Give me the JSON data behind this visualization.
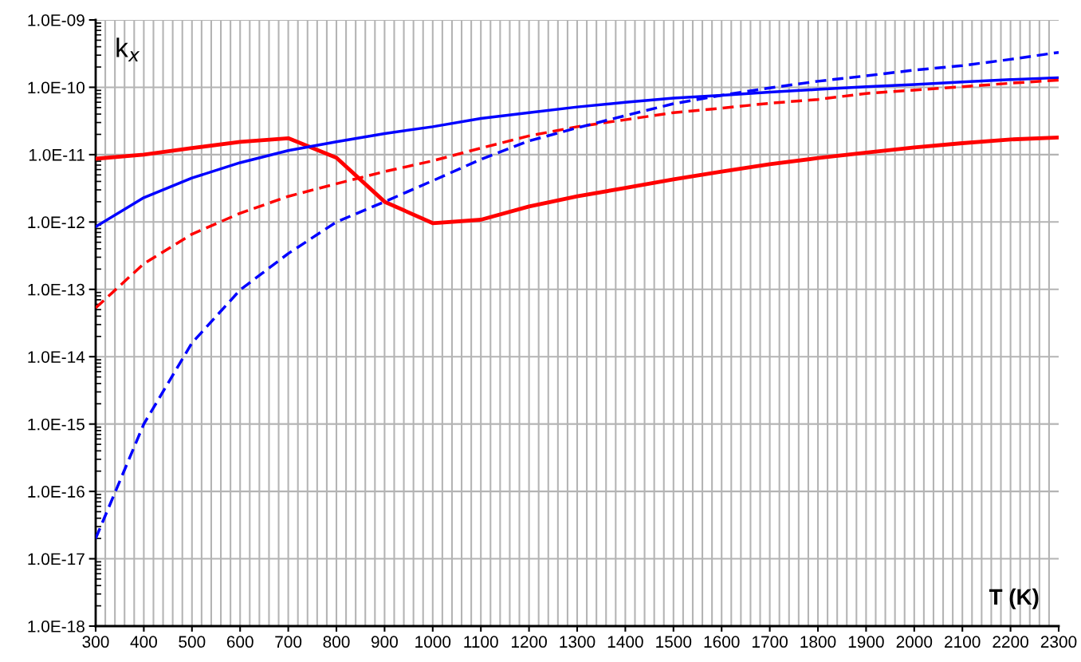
{
  "chart_data": {
    "type": "line",
    "xlabel": "T (K)",
    "ylabel": "k$_{x}$",
    "log": "y",
    "grid": true,
    "x": [
      300,
      400,
      500,
      600,
      700,
      800,
      900,
      1000,
      1100,
      1200,
      1300,
      1400,
      1500,
      1600,
      1700,
      1800,
      1900,
      2000,
      2100,
      2200,
      2300
    ],
    "series": [
      {
        "color": "#ff0000",
        "line_style": "solid",
        "values": [
          8.7e-12,
          1e-11,
          1.25e-11,
          1.55e-11,
          1.75e-11,
          9e-12,
          2e-12,
          9.6e-13,
          1.08e-12,
          1.7e-12,
          2.4e-12,
          3.2e-12,
          4.3e-12,
          5.6e-12,
          7.2e-12,
          8.9e-12,
          1.07e-11,
          1.28e-11,
          1.48e-11,
          1.68e-11,
          1.8e-11
        ]
      },
      {
        "color": "#0000ff",
        "line_style": "solid",
        "values": [
          8.5e-13,
          2.3e-12,
          4.5e-12,
          7.6e-12,
          1.15e-11,
          1.55e-11,
          2.05e-11,
          2.6e-11,
          3.45e-11,
          4.2e-11,
          5.1e-11,
          6e-11,
          6.9e-11,
          7.6e-11,
          8.5e-11,
          9.3e-11,
          1.02e-10,
          1.1e-10,
          1.2e-10,
          1.3e-10,
          1.39e-10
        ]
      },
      {
        "color": "#ff0000",
        "line_style": "dashed",
        "values": [
          5.3e-14,
          2.4e-13,
          6.6e-13,
          1.35e-12,
          2.4e-12,
          3.7e-12,
          5.6e-12,
          8.1e-12,
          1.25e-11,
          1.9e-11,
          2.6e-11,
          3.3e-11,
          4.2e-11,
          4.9e-11,
          5.8e-11,
          6.6e-11,
          8.1e-11,
          9.1e-11,
          1.02e-10,
          1.15e-10,
          1.28e-10
        ]
      },
      {
        "color": "#0000ff",
        "line_style": "dashed",
        "values": [
          2e-17,
          1e-15,
          1.6e-14,
          9.8e-14,
          3.4e-13,
          1e-12,
          2e-12,
          4.1e-12,
          8.5e-12,
          1.6e-11,
          2.5e-11,
          3.8e-11,
          5.7e-11,
          7.6e-11,
          9.8e-11,
          1.23e-10,
          1.48e-10,
          1.8e-10,
          2.1e-10,
          2.6e-10,
          3.3e-10
        ]
      }
    ],
    "xlim": [
      300,
      2300
    ],
    "xticks": [
      300,
      400,
      500,
      600,
      700,
      800,
      900,
      1000,
      1100,
      1200,
      1300,
      1400,
      1500,
      1600,
      1700,
      1800,
      1900,
      2000,
      2100,
      2200,
      2300
    ],
    "ylim": [
      1e-18,
      1e-09
    ],
    "yticks": [
      {
        "value": 1e-18,
        "label": "1.0E-18"
      },
      {
        "value": 1e-17,
        "label": "1.0E-17"
      },
      {
        "value": 1e-16,
        "label": "1.0E-16"
      },
      {
        "value": 1e-15,
        "label": "1.0E-15"
      },
      {
        "value": 1e-14,
        "label": "1.0E-14"
      },
      {
        "value": 1e-13,
        "label": "1.0E-13"
      },
      {
        "value": 1e-12,
        "label": "1.0E-12"
      },
      {
        "value": 1e-11,
        "label": "1.0E-11"
      },
      {
        "value": 1e-10,
        "label": "1.0E-10"
      },
      {
        "value": 1e-09,
        "label": "1.0E-09"
      }
    ]
  }
}
